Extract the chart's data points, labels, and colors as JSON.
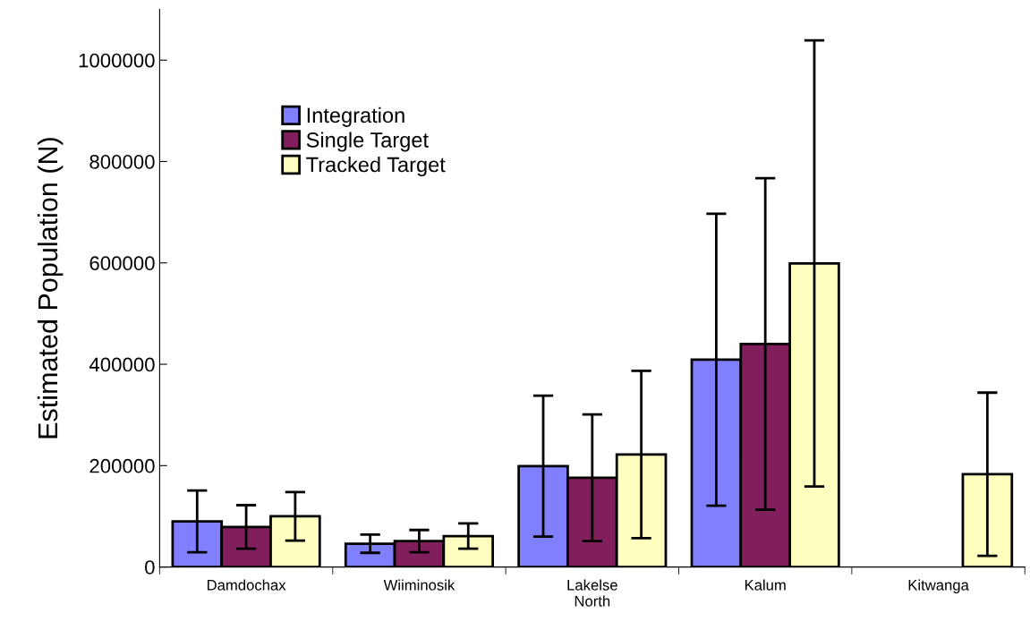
{
  "chart_data": {
    "type": "bar",
    "ylabel": "Estimated Population (N)",
    "categories": [
      "Damdochax",
      "Wiiminosik",
      "Lakelse\nNorth",
      "Kalum",
      "Kitwanga"
    ],
    "series": [
      {
        "name": "Integration",
        "color": "#8080ff",
        "values": [
          90000,
          46000,
          199000,
          409000,
          null
        ],
        "errors": [
          61000,
          18000,
          139000,
          288000,
          null
        ]
      },
      {
        "name": "Single Target",
        "color": "#801f5c",
        "values": [
          79000,
          51000,
          176000,
          440000,
          null
        ],
        "errors": [
          43000,
          22000,
          125000,
          327000,
          null
        ]
      },
      {
        "name": "Tracked Target",
        "color": "#ffffc0",
        "values": [
          100000,
          61000,
          222000,
          599000,
          183000
        ],
        "errors": [
          48000,
          25000,
          165000,
          440000,
          161000
        ]
      }
    ],
    "ylim": [
      0,
      1100000
    ],
    "yticks": [
      0,
      200000,
      400000,
      600000,
      800000,
      1000000
    ],
    "grid": false,
    "legend": "top left"
  }
}
